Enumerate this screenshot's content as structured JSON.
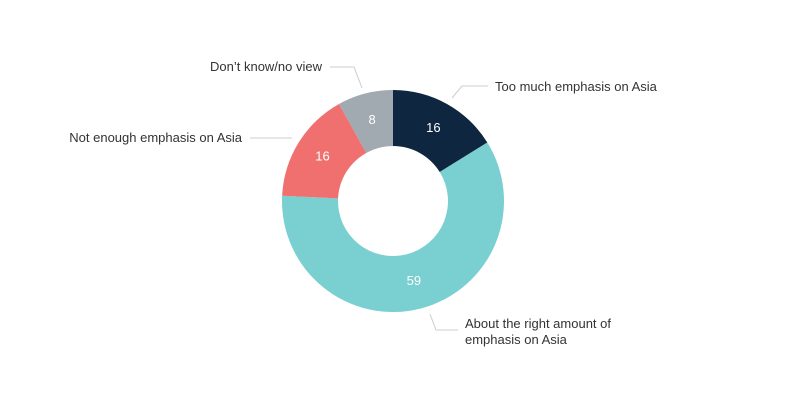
{
  "chart_data": {
    "type": "donut",
    "categories": [
      "Too much emphasis on Asia",
      "About the right amount of emphasis on Asia",
      "Not enough emphasis on Asia",
      "Don’t know/no view"
    ],
    "values": [
      16,
      59,
      16,
      8
    ],
    "colors": [
      "#0f2640",
      "#7acfd1",
      "#f07070",
      "#a0aab0"
    ]
  }
}
